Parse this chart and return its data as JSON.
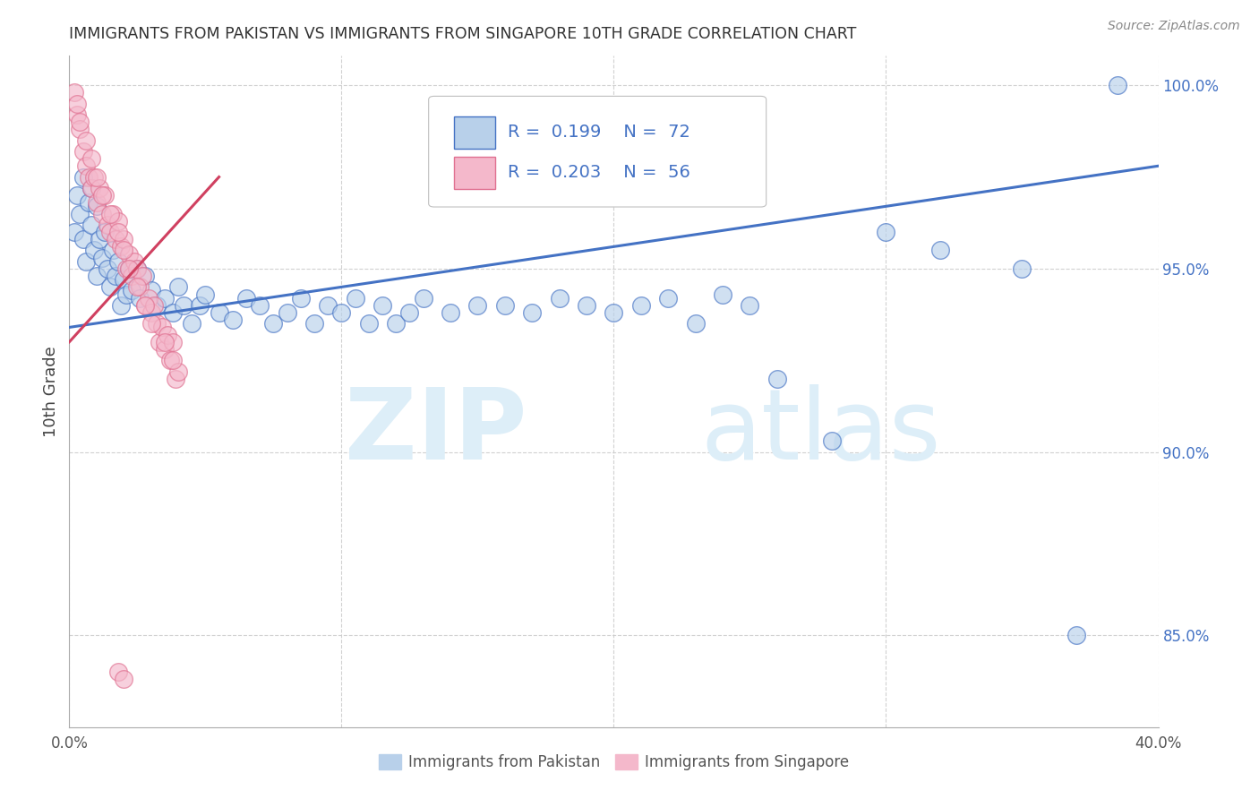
{
  "title": "IMMIGRANTS FROM PAKISTAN VS IMMIGRANTS FROM SINGAPORE 10TH GRADE CORRELATION CHART",
  "source": "Source: ZipAtlas.com",
  "ylabel": "10th Grade",
  "xlim": [
    0.0,
    0.4
  ],
  "ylim": [
    0.825,
    1.008
  ],
  "xtick_positions": [
    0.0,
    0.1,
    0.2,
    0.3,
    0.4
  ],
  "xticklabels": [
    "0.0%",
    "",
    "",
    "",
    "40.0%"
  ],
  "ytick_positions": [
    0.85,
    0.9,
    0.95,
    1.0
  ],
  "yticklabels": [
    "85.0%",
    "90.0%",
    "95.0%",
    "100.0%"
  ],
  "R_blue": "0.199",
  "N_blue": "72",
  "R_pink": "0.203",
  "N_pink": "56",
  "blue_fill": "#b8d0ea",
  "pink_fill": "#f4b8cb",
  "blue_edge": "#4472c4",
  "pink_edge": "#e07090",
  "blue_line": "#4472c4",
  "pink_line": "#d04060",
  "tick_color": "#4472c4",
  "watermark_color": "#ddeef8",
  "legend_border": "#c0c0c0",
  "blue_trend": [
    0.0,
    0.4,
    0.934,
    0.978
  ],
  "pink_trend": [
    0.0,
    0.055,
    0.93,
    0.975
  ],
  "blue_x": [
    0.002,
    0.003,
    0.004,
    0.005,
    0.005,
    0.006,
    0.007,
    0.008,
    0.008,
    0.009,
    0.01,
    0.01,
    0.011,
    0.012,
    0.013,
    0.014,
    0.015,
    0.016,
    0.017,
    0.018,
    0.019,
    0.02,
    0.021,
    0.022,
    0.023,
    0.025,
    0.026,
    0.028,
    0.03,
    0.032,
    0.035,
    0.038,
    0.04,
    0.042,
    0.045,
    0.048,
    0.05,
    0.055,
    0.06,
    0.065,
    0.07,
    0.075,
    0.08,
    0.085,
    0.09,
    0.095,
    0.1,
    0.105,
    0.11,
    0.115,
    0.12,
    0.125,
    0.13,
    0.14,
    0.15,
    0.16,
    0.17,
    0.18,
    0.19,
    0.2,
    0.21,
    0.22,
    0.23,
    0.24,
    0.25,
    0.26,
    0.28,
    0.3,
    0.32,
    0.35,
    0.37,
    0.385
  ],
  "blue_y": [
    0.96,
    0.97,
    0.965,
    0.958,
    0.975,
    0.952,
    0.968,
    0.962,
    0.972,
    0.955,
    0.948,
    0.967,
    0.958,
    0.953,
    0.96,
    0.95,
    0.945,
    0.955,
    0.948,
    0.952,
    0.94,
    0.947,
    0.943,
    0.95,
    0.944,
    0.95,
    0.942,
    0.948,
    0.944,
    0.94,
    0.942,
    0.938,
    0.945,
    0.94,
    0.935,
    0.94,
    0.943,
    0.938,
    0.936,
    0.942,
    0.94,
    0.935,
    0.938,
    0.942,
    0.935,
    0.94,
    0.938,
    0.942,
    0.935,
    0.94,
    0.935,
    0.938,
    0.942,
    0.938,
    0.94,
    0.94,
    0.938,
    0.942,
    0.94,
    0.938,
    0.94,
    0.942,
    0.935,
    0.943,
    0.94,
    0.92,
    0.903,
    0.96,
    0.955,
    0.95,
    0.85,
    1.0
  ],
  "pink_x": [
    0.002,
    0.003,
    0.004,
    0.005,
    0.006,
    0.007,
    0.008,
    0.009,
    0.01,
    0.011,
    0.012,
    0.013,
    0.014,
    0.015,
    0.016,
    0.017,
    0.018,
    0.019,
    0.02,
    0.021,
    0.022,
    0.023,
    0.024,
    0.025,
    0.026,
    0.027,
    0.028,
    0.029,
    0.03,
    0.031,
    0.032,
    0.033,
    0.034,
    0.035,
    0.036,
    0.037,
    0.038,
    0.039,
    0.04,
    0.003,
    0.004,
    0.006,
    0.008,
    0.01,
    0.012,
    0.015,
    0.018,
    0.02,
    0.022,
    0.025,
    0.028,
    0.03,
    0.035,
    0.038,
    0.018,
    0.02
  ],
  "pink_y": [
    0.998,
    0.992,
    0.988,
    0.982,
    0.978,
    0.975,
    0.972,
    0.975,
    0.968,
    0.972,
    0.965,
    0.97,
    0.962,
    0.96,
    0.965,
    0.958,
    0.963,
    0.956,
    0.958,
    0.95,
    0.954,
    0.948,
    0.952,
    0.95,
    0.945,
    0.948,
    0.94,
    0.942,
    0.938,
    0.94,
    0.935,
    0.93,
    0.934,
    0.928,
    0.932,
    0.925,
    0.93,
    0.92,
    0.922,
    0.995,
    0.99,
    0.985,
    0.98,
    0.975,
    0.97,
    0.965,
    0.96,
    0.955,
    0.95,
    0.945,
    0.94,
    0.935,
    0.93,
    0.925,
    0.84,
    0.838
  ]
}
